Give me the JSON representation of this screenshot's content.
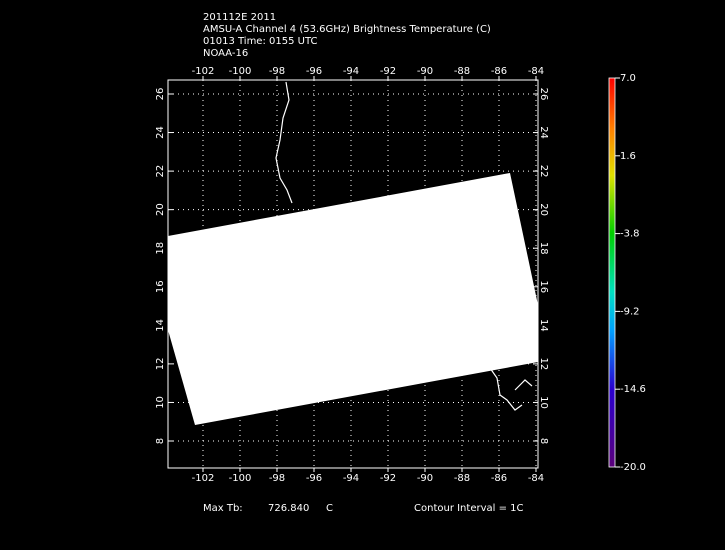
{
  "header": {
    "lines": [
      "201112E 2011",
      "AMSU-A Channel 4 (53.6GHz) Brightness Temperature (C)",
      "01013 Time: 0155 UTC",
      "NOAA-16"
    ]
  },
  "map": {
    "lon_ticks": [
      -102,
      -100,
      -98,
      -96,
      -94,
      -92,
      -90,
      -88,
      -86,
      -84
    ],
    "lat_ticks": [
      8,
      10,
      12,
      14,
      16,
      18,
      20,
      22,
      24,
      26
    ]
  },
  "colorbar": {
    "ticks": [
      {
        "value": 7,
        "label": "7.0"
      },
      {
        "value": 1.6,
        "label": "1.6"
      },
      {
        "value": -3.8,
        "label": "-3.8"
      },
      {
        "value": -9.2,
        "label": "-9.2"
      },
      {
        "value": -14.6,
        "label": "-14.6"
      },
      {
        "value": -20,
        "label": "-20.0"
      }
    ]
  },
  "footer": {
    "max_label": "Max Tb:",
    "max_value": "726.840",
    "unit": "C",
    "contour": "Contour Interval = 1C"
  }
}
